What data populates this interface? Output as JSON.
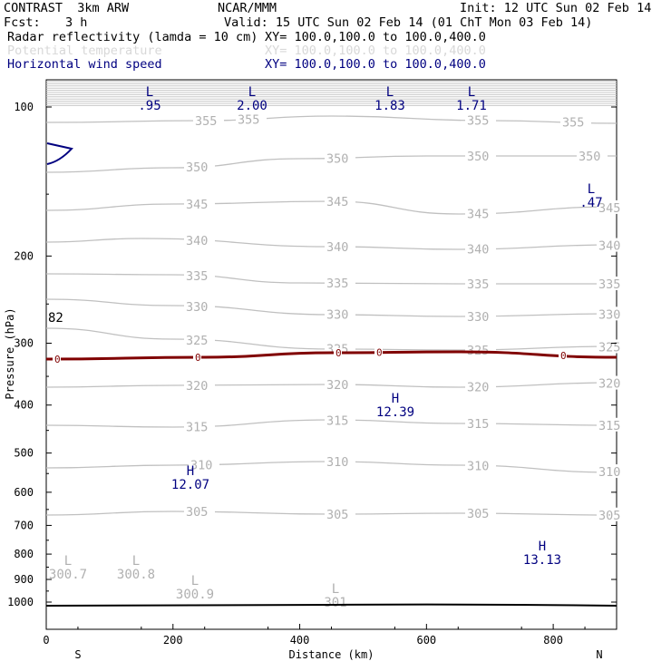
{
  "header": {
    "model": "CONTRAST  3km ARW",
    "center": "NCAR/MMM",
    "init": "Init: 12 UTC Sun 02 Feb 14",
    "fcst_label": "Fcst:",
    "fcst_value": "3 h",
    "valid": "Valid: 15 UTC Sun 02 Feb 14 (01 ChT Mon 03 Feb 14)"
  },
  "fields": [
    {
      "name": "Radar reflectivity (lamda = 10 cm)",
      "xy": "XY= 100.0,100.0 to 100.0,400.0",
      "color": "#000000"
    },
    {
      "name": "Potential temperature",
      "xy": "XY= 100.0,100.0 to 100.0,400.0",
      "color": "#d8d8d8"
    },
    {
      "name": "Horizontal wind speed",
      "xy": "XY= 100.0,100.0 to 100.0,400.0",
      "color": "#000080"
    }
  ],
  "chart_data": {
    "type": "cross-section",
    "xlabel": "Distance (km)",
    "ylabel": "Pressure (hPa)",
    "xlim": [
      0,
      900
    ],
    "ylim": [
      1050,
      70
    ],
    "y_scale": "log",
    "x_ticks": [
      "0",
      "200",
      "400",
      "600",
      "800"
    ],
    "x_tick_values": [
      0,
      200,
      400,
      600,
      800
    ],
    "y_ticks": [
      "100",
      "200",
      "300",
      "400",
      "500",
      "600",
      "700",
      "800",
      "900",
      "1000"
    ],
    "y_tick_values": [
      100,
      200,
      300,
      400,
      500,
      600,
      700,
      800,
      900,
      1000
    ],
    "endpoints": {
      "left": "S",
      "right": "N"
    },
    "theta_contours": [
      {
        "level": 355,
        "label": "355",
        "profile": [
          [
            0,
            135
          ],
          [
            250,
            133
          ],
          [
            450,
            128
          ],
          [
            700,
            133
          ],
          [
            900,
            136
          ]
        ],
        "label_x": [
          215,
          262,
          515,
          620
        ]
      },
      {
        "level": 350,
        "label": "350",
        "profile": [
          [
            0,
            190
          ],
          [
            200,
            185
          ],
          [
            400,
            175
          ],
          [
            600,
            172
          ],
          [
            900,
            172
          ]
        ],
        "label_x": [
          205,
          360,
          515,
          638
        ]
      },
      {
        "level": 345,
        "label": "345",
        "profile": [
          [
            0,
            232
          ],
          [
            200,
            225
          ],
          [
            450,
            222
          ],
          [
            650,
            236
          ],
          [
            900,
            228
          ]
        ],
        "label_x": [
          205,
          360,
          515,
          660
        ]
      },
      {
        "level": 340,
        "label": "340",
        "profile": [
          [
            0,
            267
          ],
          [
            150,
            263
          ],
          [
            450,
            272
          ],
          [
            650,
            275
          ],
          [
            900,
            270
          ]
        ],
        "label_x": [
          205,
          360,
          515,
          660
        ]
      },
      {
        "level": 335,
        "label": "335",
        "profile": [
          [
            0,
            302
          ],
          [
            200,
            303
          ],
          [
            400,
            312
          ],
          [
            650,
            313
          ],
          [
            900,
            313
          ]
        ],
        "label_x": [
          205,
          360,
          515,
          660
        ]
      },
      {
        "level": 330,
        "label": "330",
        "profile": [
          [
            0,
            330
          ],
          [
            200,
            337
          ],
          [
            450,
            347
          ],
          [
            650,
            349
          ],
          [
            900,
            346
          ]
        ],
        "label_x": [
          205,
          360,
          515,
          660
        ]
      },
      {
        "level": 325,
        "label": "325",
        "profile": [
          [
            0,
            362
          ],
          [
            200,
            374
          ],
          [
            450,
            385
          ],
          [
            650,
            386
          ],
          [
            900,
            382
          ]
        ],
        "label_x": [
          205,
          360,
          515,
          660
        ]
      },
      {
        "level": 320,
        "label": "320",
        "profile": [
          [
            0,
            427
          ],
          [
            200,
            425
          ],
          [
            450,
            424
          ],
          [
            650,
            427
          ],
          [
            900,
            422
          ]
        ],
        "label_x": [
          205,
          360,
          515,
          660
        ]
      },
      {
        "level": 315,
        "label": "315",
        "profile": [
          [
            0,
            469
          ],
          [
            200,
            471
          ],
          [
            450,
            463
          ],
          [
            650,
            467
          ],
          [
            900,
            469
          ]
        ],
        "label_x": [
          205,
          360,
          515,
          660
        ]
      },
      {
        "level": 310,
        "label": "310",
        "profile": [
          [
            0,
            516
          ],
          [
            200,
            513
          ],
          [
            450,
            509
          ],
          [
            650,
            513
          ],
          [
            900,
            521
          ]
        ],
        "label_x": [
          210,
          360,
          515,
          660
        ]
      },
      {
        "level": 305,
        "label": "305",
        "profile": [
          [
            0,
            568
          ],
          [
            200,
            564
          ],
          [
            450,
            567
          ],
          [
            650,
            566
          ],
          [
            900,
            568
          ]
        ],
        "label_x": [
          205,
          360,
          515,
          660
        ]
      }
    ],
    "freezing_level": {
      "label": "0",
      "profile": [
        [
          0,
          396
        ],
        [
          250,
          394
        ],
        [
          450,
          389
        ],
        [
          650,
          388
        ],
        [
          900,
          394
        ]
      ],
      "label_x": [
        60,
        215,
        370,
        415,
        618
      ]
    },
    "annotations": [
      {
        "text": "L",
        "value": ".95",
        "x": 165,
        "y": 100,
        "color": "#000080"
      },
      {
        "text": "L",
        "value": "2.00",
        "x": 278,
        "y": 100,
        "color": "#000080"
      },
      {
        "text": "L",
        "value": "1.83",
        "x": 430,
        "y": 100,
        "color": "#000080"
      },
      {
        "text": "L",
        "value": "1.71",
        "x": 520,
        "y": 100,
        "color": "#000080"
      },
      {
        "text": "L",
        "value": ".47",
        "x": 652,
        "y": 207,
        "color": "#000080"
      },
      {
        "text": "H",
        "value": "12.39",
        "x": 436,
        "y": 438,
        "color": "#000080"
      },
      {
        "text": "H",
        "value": "12.07",
        "x": 210,
        "y": 518,
        "color": "#000080"
      },
      {
        "text": "H",
        "value": "13.13",
        "x": 598,
        "y": 601,
        "color": "#000080"
      },
      {
        "text": "L",
        "value": "300.7",
        "x": 75,
        "y": 617,
        "color": "#b0b0b0"
      },
      {
        "text": "L",
        "value": "300.8",
        "x": 150,
        "y": 617,
        "color": "#b0b0b0"
      },
      {
        "text": "L",
        "value": "300.9",
        "x": 215,
        "y": 639,
        "color": "#b0b0b0"
      },
      {
        "text": "L",
        "value": "301",
        "x": 370,
        "y": 648,
        "color": "#b0b0b0"
      }
    ],
    "edge_label": {
      "text": "82",
      "x": 53,
      "y": 355,
      "color": "#000000"
    }
  }
}
